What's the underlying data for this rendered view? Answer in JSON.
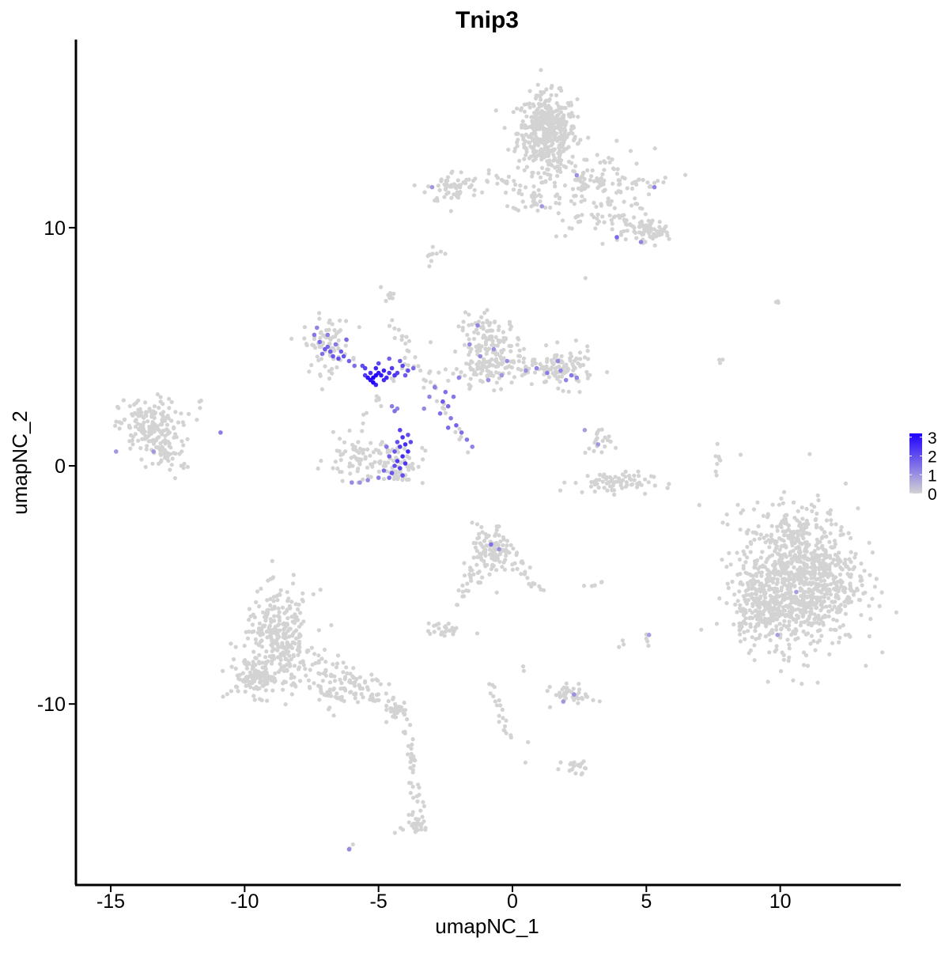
{
  "chart_data": {
    "type": "scatter",
    "title": "Tnip3",
    "xlabel": "umapNC_1",
    "ylabel": "umapNC_2",
    "xlim": [
      -16.3,
      14.5
    ],
    "ylim": [
      -17.6,
      17.9
    ],
    "x_ticks": [
      -15,
      -10,
      -5,
      0,
      5,
      10
    ],
    "x_tick_labels": [
      "-15",
      "-10",
      "-5",
      "0",
      "5",
      "10"
    ],
    "y_ticks": [
      -10,
      0,
      10
    ],
    "y_tick_labels": [
      "-10",
      "0",
      "10"
    ],
    "grid": false,
    "colors": {
      "low": "#d3d3d3",
      "high": "#1f00ff",
      "axis": "#000000"
    },
    "legend": {
      "position": "right",
      "min": 0,
      "max": 3.2,
      "ticks": [
        0,
        1,
        2,
        3
      ],
      "tick_labels": [
        "0",
        "1",
        "2",
        "3"
      ]
    },
    "clusters": [
      {
        "cx": 1.3,
        "cy": 14.0,
        "sx": 0.55,
        "sy": 0.8,
        "n": 450
      },
      {
        "cx": 3.3,
        "cy": 11.5,
        "sx": 1.0,
        "sy": 0.9,
        "n": 130
      },
      {
        "cx": 5.0,
        "cy": 9.8,
        "sx": 0.45,
        "sy": 0.3,
        "n": 60
      },
      {
        "cx": -2.2,
        "cy": 11.7,
        "sx": 0.5,
        "sy": 0.35,
        "n": 60
      },
      {
        "cx": 0.8,
        "cy": 11.2,
        "sx": 0.4,
        "sy": 0.25,
        "n": 22
      },
      {
        "cx": -13.6,
        "cy": 1.6,
        "sx": 0.55,
        "sy": 0.6,
        "n": 170
      },
      {
        "cx": -12.8,
        "cy": 0.4,
        "sx": 0.4,
        "sy": 0.35,
        "n": 35
      },
      {
        "cx": -6.9,
        "cy": 5.1,
        "sx": 0.45,
        "sy": 0.6,
        "n": 80
      },
      {
        "cx": -0.8,
        "cy": 5.1,
        "sx": 0.6,
        "sy": 0.6,
        "n": 130
      },
      {
        "cx": -0.6,
        "cy": 4.0,
        "sx": 0.9,
        "sy": 0.35,
        "n": 90
      },
      {
        "cx": 1.9,
        "cy": 4.1,
        "sx": 0.55,
        "sy": 0.4,
        "n": 100
      },
      {
        "cx": -5.8,
        "cy": 0.3,
        "sx": 0.6,
        "sy": 0.45,
        "n": 70
      },
      {
        "cx": -4.2,
        "cy": 0.1,
        "sx": 0.45,
        "sy": 0.45,
        "n": 60
      },
      {
        "cx": 3.7,
        "cy": -0.7,
        "sx": 0.75,
        "sy": 0.22,
        "n": 75
      },
      {
        "cx": 3.2,
        "cy": 0.9,
        "sx": 0.25,
        "sy": 0.35,
        "n": 20
      },
      {
        "cx": 10.7,
        "cy": -4.7,
        "sx": 1.1,
        "sy": 1.45,
        "n": 1000
      },
      {
        "cx": 9.2,
        "cy": -6.1,
        "sx": 0.5,
        "sy": 0.6,
        "n": 120
      },
      {
        "cx": -0.8,
        "cy": -3.6,
        "sx": 0.35,
        "sy": 0.55,
        "n": 110
      },
      {
        "cx": -8.7,
        "cy": -7.3,
        "sx": 0.65,
        "sy": 1.0,
        "n": 300
      },
      {
        "cx": -9.6,
        "cy": -8.9,
        "sx": 0.5,
        "sy": 0.4,
        "n": 90
      },
      {
        "cx": -6.5,
        "cy": -9.4,
        "sx": 0.7,
        "sy": 0.45,
        "n": 70
      },
      {
        "cx": -4.3,
        "cy": -10.3,
        "sx": 0.25,
        "sy": 0.15,
        "n": 25
      },
      {
        "cx": -2.6,
        "cy": -6.9,
        "sx": 0.3,
        "sy": 0.15,
        "n": 25
      },
      {
        "cx": 2.3,
        "cy": -9.6,
        "sx": 0.4,
        "sy": 0.2,
        "n": 40
      },
      {
        "cx": 2.4,
        "cy": -12.6,
        "sx": 0.25,
        "sy": 0.15,
        "n": 12
      },
      {
        "cx": -3.7,
        "cy": -15.0,
        "sx": 0.25,
        "sy": 0.35,
        "n": 25
      },
      {
        "cx": -4.7,
        "cy": 7.1,
        "sx": 0.2,
        "sy": 0.2,
        "n": 8
      },
      {
        "cx": -3.0,
        "cy": 8.8,
        "sx": 0.25,
        "sy": 0.15,
        "n": 10
      }
    ],
    "trails": [
      {
        "from": [
          -0.9,
          12.2
        ],
        "to": [
          1.6,
          11.1
        ],
        "n": 25,
        "w": 0.15
      },
      {
        "from": [
          1.2,
          12.8
        ],
        "to": [
          1.4,
          11.1
        ],
        "n": 15,
        "w": 0.2
      },
      {
        "from": [
          2.4,
          12.0
        ],
        "to": [
          5.8,
          11.8
        ],
        "n": 30,
        "w": 0.2
      },
      {
        "from": [
          3.8,
          10.5
        ],
        "to": [
          5.7,
          9.8
        ],
        "n": 20,
        "w": 0.2
      },
      {
        "from": [
          -11.6,
          2.7
        ],
        "to": [
          -12.5,
          1.5
        ],
        "n": 6,
        "w": 0.15
      },
      {
        "from": [
          -4.6,
          6.5
        ],
        "to": [
          -3.6,
          4.0
        ],
        "n": 18,
        "w": 0.15
      },
      {
        "from": [
          -3.4,
          4.0
        ],
        "to": [
          -1.6,
          0.7
        ],
        "n": 20,
        "w": 0.15
      },
      {
        "from": [
          -5.5,
          1.8
        ],
        "to": [
          -4.0,
          4.2
        ],
        "n": 15,
        "w": 0.15
      },
      {
        "from": [
          -0.3,
          -3.6
        ],
        "to": [
          1.1,
          -5.4
        ],
        "n": 25,
        "w": 0.2
      },
      {
        "from": [
          -1.4,
          -4.2
        ],
        "to": [
          -2.1,
          -6.1
        ],
        "n": 20,
        "w": 0.12
      },
      {
        "from": [
          -7.8,
          -7.8
        ],
        "to": [
          -4.1,
          -10.2
        ],
        "n": 60,
        "w": 0.25
      },
      {
        "from": [
          -4.0,
          -10.5
        ],
        "to": [
          -3.4,
          -15.3
        ],
        "n": 40,
        "w": 0.12
      },
      {
        "from": [
          -0.9,
          -9.2
        ],
        "to": [
          -0.1,
          -11.5
        ],
        "n": 20,
        "w": 0.1
      },
      {
        "from": [
          2.8,
          -12.9
        ],
        "to": [
          1.8,
          -12.3
        ],
        "n": 6,
        "w": 0.1
      },
      {
        "from": [
          7.8,
          1.0
        ],
        "to": [
          7.6,
          -0.4
        ],
        "n": 8,
        "w": 0.08
      },
      {
        "from": [
          7.7,
          4.6
        ],
        "to": [
          7.9,
          4.2
        ],
        "n": 3,
        "w": 0.05
      },
      {
        "from": [
          9.4,
          6.7
        ],
        "to": [
          10.0,
          6.9
        ],
        "n": 3,
        "w": 0.05
      },
      {
        "from": [
          2.7,
          -5.0
        ],
        "to": [
          3.4,
          -4.9
        ],
        "n": 5,
        "w": 0.05
      },
      {
        "from": [
          5.0,
          -7.1
        ],
        "to": [
          5.1,
          -7.6
        ],
        "n": 4,
        "w": 0.05
      },
      {
        "from": [
          -6.1,
          -16.1
        ],
        "to": [
          -5.9,
          -15.9
        ],
        "n": 3,
        "w": 0.03
      },
      {
        "from": [
          4.3,
          -7.2
        ],
        "to": [
          3.9,
          -7.7
        ],
        "n": 3,
        "w": 0.05
      },
      {
        "from": [
          0.4,
          -7.4
        ],
        "to": [
          0.6,
          -14.1
        ],
        "n": 4,
        "w": 0.05
      }
    ],
    "expressing_points": [
      [
        -5.2,
        3.7,
        3.2
      ],
      [
        -5.1,
        3.8,
        3.1
      ],
      [
        -5.3,
        3.6,
        3.0
      ],
      [
        -5.0,
        3.9,
        2.9
      ],
      [
        -4.9,
        3.8,
        2.8
      ],
      [
        -5.2,
        3.5,
        3.1
      ],
      [
        -4.8,
        4.0,
        2.7
      ],
      [
        -5.4,
        3.7,
        2.9
      ],
      [
        -5.1,
        4.1,
        2.6
      ],
      [
        -4.7,
        3.7,
        2.6
      ],
      [
        -5.3,
        3.9,
        2.5
      ],
      [
        -4.6,
        3.9,
        2.4
      ],
      [
        -4.5,
        4.1,
        2.3
      ],
      [
        -4.3,
        3.9,
        2.2
      ],
      [
        -4.1,
        4.2,
        2.1
      ],
      [
        -3.9,
        4.0,
        2.0
      ],
      [
        -5.5,
        4.1,
        2.2
      ],
      [
        -5.6,
        4.2,
        2.0
      ],
      [
        -5.0,
        4.3,
        2.1
      ],
      [
        -4.4,
        3.8,
        2.4
      ],
      [
        -4.0,
        3.8,
        1.8
      ],
      [
        -3.7,
        4.1,
        1.6
      ],
      [
        -4.8,
        3.6,
        2.5
      ],
      [
        -5.1,
        3.4,
        2.7
      ],
      [
        -4.2,
        4.4,
        1.9
      ],
      [
        -4.6,
        4.5,
        1.7
      ],
      [
        -5.5,
        3.8,
        2.3
      ],
      [
        -7.4,
        5.5,
        1.4
      ],
      [
        -7.2,
        5.2,
        1.6
      ],
      [
        -7.0,
        4.9,
        1.8
      ],
      [
        -6.9,
        5.0,
        1.6
      ],
      [
        -6.7,
        4.6,
        1.9
      ],
      [
        -6.5,
        4.5,
        2.0
      ],
      [
        -6.3,
        4.6,
        1.9
      ],
      [
        -6.1,
        4.4,
        1.7
      ],
      [
        -7.3,
        5.8,
        1.2
      ],
      [
        -6.8,
        4.8,
        1.8
      ],
      [
        -7.1,
        4.7,
        1.5
      ],
      [
        -6.6,
        5.1,
        1.4
      ],
      [
        -6.4,
        4.8,
        1.8
      ],
      [
        -6.2,
        5.3,
        1.6
      ],
      [
        -5.9,
        4.2,
        1.5
      ],
      [
        -6.9,
        5.5,
        1.3
      ],
      [
        -4.2,
        1.5,
        2.2
      ],
      [
        -4.1,
        1.2,
        2.4
      ],
      [
        -4.0,
        0.9,
        2.5
      ],
      [
        -4.2,
        0.8,
        2.3
      ],
      [
        -3.9,
        0.6,
        2.6
      ],
      [
        -4.1,
        0.4,
        2.5
      ],
      [
        -4.3,
        0.2,
        2.3
      ],
      [
        -4.0,
        0.1,
        2.4
      ],
      [
        -4.2,
        -0.1,
        2.2
      ],
      [
        -4.4,
        0.0,
        2.0
      ],
      [
        -3.8,
        1.0,
        2.1
      ],
      [
        -4.3,
        1.0,
        2.0
      ],
      [
        -4.5,
        -0.3,
        1.9
      ],
      [
        -4.6,
        0.4,
        1.8
      ],
      [
        -4.8,
        -0.2,
        1.6
      ],
      [
        -3.9,
        1.3,
        2.0
      ],
      [
        -4.1,
        -0.4,
        2.0
      ],
      [
        -4.4,
        0.6,
        1.9
      ],
      [
        -4.7,
        0.8,
        1.4
      ],
      [
        -5.0,
        -0.5,
        1.3
      ],
      [
        -5.4,
        -0.6,
        1.1
      ],
      [
        -5.7,
        -0.7,
        1.0
      ],
      [
        -6.0,
        -0.7,
        1.1
      ],
      [
        -4.6,
        -0.5,
        1.6
      ],
      [
        -2.6,
        2.7,
        1.8
      ],
      [
        -2.4,
        2.5,
        1.6
      ],
      [
        -2.7,
        2.2,
        1.5
      ],
      [
        -2.2,
        2.9,
        1.4
      ],
      [
        -2.5,
        3.1,
        1.5
      ],
      [
        -2.9,
        3.3,
        1.3
      ],
      [
        -2.3,
        2.0,
        1.4
      ],
      [
        -2.0,
        3.7,
        1.2
      ],
      [
        -2.1,
        1.7,
        1.7
      ],
      [
        -1.9,
        1.4,
        1.5
      ],
      [
        -1.7,
        1.1,
        1.4
      ],
      [
        -1.5,
        0.8,
        1.2
      ],
      [
        -2.4,
        1.6,
        1.6
      ],
      [
        -3.1,
        2.9,
        1.2
      ],
      [
        -3.3,
        2.4,
        1.1
      ],
      [
        -4.4,
        2.3,
        1.5
      ],
      [
        -4.5,
        2.5,
        1.3
      ],
      [
        -4.3,
        2.4,
        1.2
      ],
      [
        -1.3,
        5.9,
        1.2
      ],
      [
        -1.2,
        4.6,
        1.1
      ],
      [
        -0.7,
        4.9,
        1.0
      ],
      [
        -0.2,
        4.4,
        1.1
      ],
      [
        0.9,
        4.1,
        1.2
      ],
      [
        1.3,
        3.9,
        1.3
      ],
      [
        1.8,
        4.0,
        1.2
      ],
      [
        2.2,
        3.8,
        1.4
      ],
      [
        2.4,
        3.7,
        1.2
      ],
      [
        1.7,
        4.4,
        1.1
      ],
      [
        0.5,
        4.0,
        1.0
      ],
      [
        -0.4,
        3.8,
        0.9
      ],
      [
        2.0,
        3.6,
        1.2
      ],
      [
        -0.9,
        3.6,
        1.0
      ],
      [
        -1.6,
        5.1,
        1.1
      ],
      [
        -0.8,
        -3.3,
        1.5
      ],
      [
        -0.5,
        -3.5,
        1.0
      ],
      [
        2.3,
        -9.6,
        1.0
      ],
      [
        1.9,
        -9.9,
        0.9
      ],
      [
        -14.8,
        0.6,
        0.9
      ],
      [
        -13.4,
        0.6,
        0.9
      ],
      [
        -10.9,
        1.4,
        1.3
      ],
      [
        -6.1,
        -16.1,
        1.1
      ],
      [
        3.9,
        9.6,
        1.6
      ],
      [
        4.8,
        9.4,
        1.2
      ],
      [
        2.4,
        12.2,
        1.0
      ],
      [
        5.3,
        11.7,
        1.2
      ],
      [
        1.1,
        10.9,
        0.9
      ],
      [
        -3.0,
        11.7,
        0.9
      ],
      [
        5.1,
        -7.1,
        0.8
      ],
      [
        10.6,
        -5.3,
        0.8
      ],
      [
        9.9,
        -7.1,
        0.8
      ],
      [
        3.2,
        0.9,
        0.9
      ],
      [
        2.7,
        1.5,
        0.8
      ]
    ]
  }
}
